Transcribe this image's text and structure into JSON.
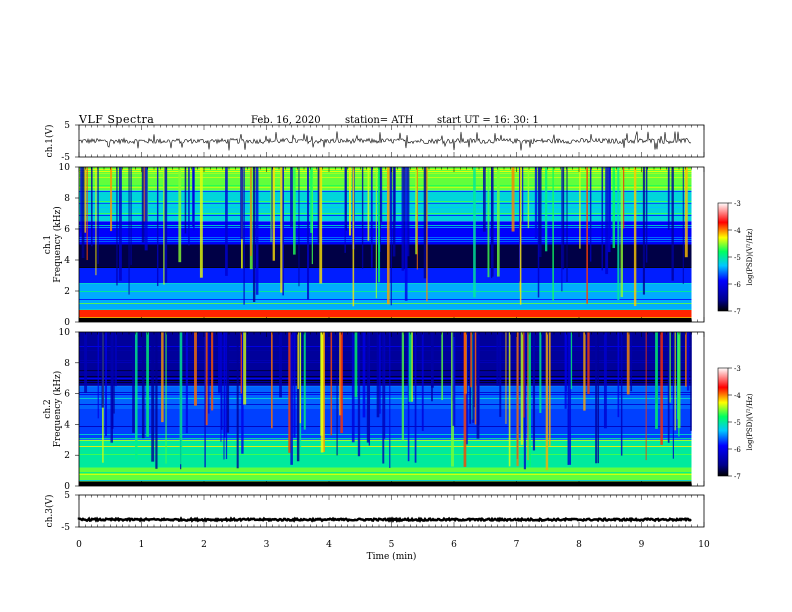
{
  "header": {
    "title": "VLF  Spectra",
    "date": "Feb. 16, 2020",
    "station": "station= ATH",
    "start": "start  UT  =    16: 30: 1"
  },
  "chart_data": [
    {
      "type": "line",
      "panel": "ch1-waveform",
      "ylabel": "ch.1(V)",
      "yticks": [
        "5",
        "-5"
      ],
      "ylim": [
        -5,
        5
      ],
      "xlim": [
        0,
        10
      ],
      "baseline_value": 0,
      "noise_amplitude": 0.8,
      "spike_amplitude": 3,
      "data_end_min": 9.8,
      "line_color": "#000000"
    },
    {
      "type": "heatmap",
      "panel": "ch1-spectrogram",
      "ylabel_line1": "ch.1",
      "ylabel_line2": "Frequency (kHz)",
      "yticks": [
        "10",
        "8",
        "6",
        "4",
        "2",
        "0"
      ],
      "ylim": [
        0,
        10
      ],
      "xlim": [
        0,
        10
      ],
      "data_end_min": 9.8,
      "colorbar_label": "log(PSD)(V²/Hz)",
      "colorbar_ticks": [
        "-3",
        "-4",
        "-5",
        "-6",
        "-7"
      ],
      "zlim": [
        -7,
        -3
      ],
      "bands_khz": [
        {
          "from": 0,
          "to": 0.3,
          "level": -7
        },
        {
          "from": 0.3,
          "to": 0.8,
          "level": -3.8
        },
        {
          "from": 0.8,
          "to": 2.5,
          "level": -5.4
        },
        {
          "from": 2.5,
          "to": 3.5,
          "level": -5.8
        },
        {
          "from": 3.5,
          "to": 5.0,
          "level": -6.8
        },
        {
          "from": 5.0,
          "to": 6.5,
          "level": -5.9
        },
        {
          "from": 6.5,
          "to": 8.5,
          "level": -5.2
        },
        {
          "from": 8.5,
          "to": 10,
          "level": -4.6
        }
      ]
    },
    {
      "type": "heatmap",
      "panel": "ch2-spectrogram",
      "ylabel_line1": "ch.2",
      "ylabel_line2": "Frequency (kHz)",
      "yticks": [
        "10",
        "8",
        "6",
        "4",
        "2",
        "0"
      ],
      "ylim": [
        0,
        10
      ],
      "xlim": [
        0,
        10
      ],
      "data_end_min": 9.8,
      "colorbar_label": "log(PSD)(V²/Hz)",
      "colorbar_ticks": [
        "-3",
        "-4",
        "-5",
        "-6",
        "-7"
      ],
      "zlim": [
        -7,
        -3
      ],
      "bands_khz": [
        {
          "from": 0,
          "to": 0.3,
          "level": -7
        },
        {
          "from": 0.3,
          "to": 1.2,
          "level": -4.6
        },
        {
          "from": 1.2,
          "to": 3.0,
          "level": -5.0
        },
        {
          "from": 3.0,
          "to": 5.0,
          "level": -5.7
        },
        {
          "from": 5.0,
          "to": 6.5,
          "level": -5.6
        },
        {
          "from": 6.5,
          "to": 10,
          "level": -6.5
        }
      ]
    },
    {
      "type": "line",
      "panel": "ch3-waveform",
      "ylabel": "ch.3(V)",
      "yticks": [
        "5",
        "-5"
      ],
      "ylim": [
        -5,
        5
      ],
      "xlim": [
        0,
        10
      ],
      "baseline_value": -2.7,
      "noise_amplitude": 0.3,
      "spike_amplitude": 0,
      "data_end_min": 9.8,
      "line_color": "#000000"
    }
  ],
  "x_axis": {
    "label": "Time  (min)",
    "ticks": [
      "0",
      "1",
      "2",
      "3",
      "4",
      "5",
      "6",
      "7",
      "8",
      "9",
      "10"
    ]
  }
}
